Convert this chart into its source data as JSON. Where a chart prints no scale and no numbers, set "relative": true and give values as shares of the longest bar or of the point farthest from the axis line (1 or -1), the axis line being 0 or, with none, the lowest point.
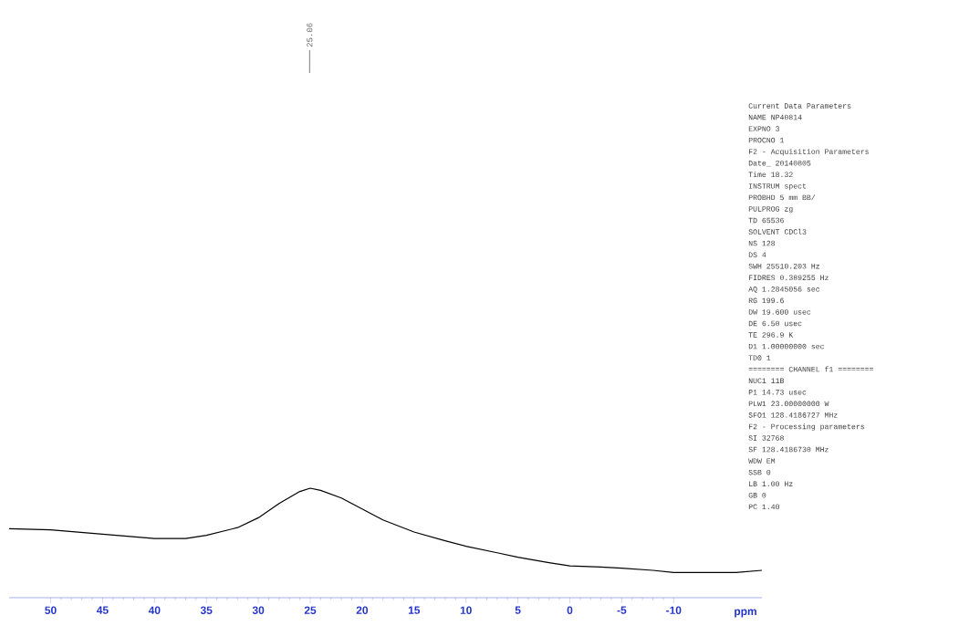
{
  "chart_data": {
    "type": "line",
    "relative": true,
    "xlabel": "ppm",
    "x": [
      54,
      50,
      45,
      40,
      37,
      35,
      32,
      30,
      28,
      26,
      25,
      24,
      22,
      20,
      18,
      15,
      12,
      10,
      7,
      5,
      2,
      0,
      -3,
      -5,
      -8,
      -10,
      -13,
      -16,
      -18.5
    ],
    "series": [
      {
        "color": "#000000",
        "values": [
          0.63,
          0.62,
          0.58,
          0.54,
          0.54,
          0.57,
          0.64,
          0.73,
          0.86,
          0.97,
          1,
          0.98,
          0.91,
          0.81,
          0.71,
          0.6,
          0.52,
          0.47,
          0.41,
          0.37,
          0.32,
          0.29,
          0.28,
          0.27,
          0.25,
          0.23,
          0.23,
          0.23,
          0.25
        ]
      }
    ],
    "xlim": [
      54,
      -18.5
    ],
    "xticks": [
      50,
      45,
      40,
      35,
      30,
      25,
      20,
      15,
      10,
      5,
      0,
      -5,
      -10
    ],
    "grid": false,
    "marker": "none",
    "line_style": "solid",
    "ref_lines": [
      {
        "axis": "x",
        "value": 25.06,
        "label": "25.06"
      }
    ],
    "annotations": [
      "Current Data Parameters",
      "NAME NP40814",
      "EXPNO 3",
      "PROCNO 1",
      "F2 - Acquisition Parameters",
      "Date_ 20140805",
      "Time 18.32",
      "INSTRUM spect",
      "PROBHD 5 mm BB/",
      "PULPROG zg",
      "TD 65536",
      "SOLVENT CDCl3",
      "NS 128",
      "DS 4",
      "SWH 25510.203 Hz",
      "FIDRES 0.389255 Hz",
      "AQ 1.2845056 sec",
      "RG 199.6",
      "DW 19.600 usec",
      "DE 6.50 usec",
      "TE 296.9 K",
      "D1 1.00000000 sec",
      "TD0 1",
      "======== CHANNEL f1 ========",
      "NUC1 11B",
      "P1 14.73 usec",
      "PLW1 23.00000000 W",
      "SFO1 128.4186727 MHz",
      "F2 - Processing parameters",
      "SI 32768",
      "SF 128.4186730 MHz",
      "WDW EM",
      "SSB 0",
      "LB 1.00 Hz",
      "GB 0",
      "PC 1.40"
    ]
  }
}
